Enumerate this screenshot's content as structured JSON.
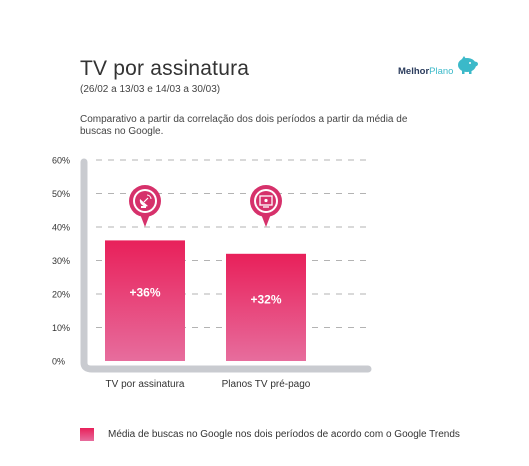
{
  "header": {
    "title": "TV por assinatura",
    "subtitle": "(26/02 a 13/03 e 14/03 a 30/03)",
    "description": "Comparativo a partir da correlação dos dois períodos a partir da média de buscas no Google."
  },
  "logo": {
    "part1": "Melhor",
    "part2": "Plano",
    "accent_color": "#3bb9c9"
  },
  "legend": {
    "label": "Média de buscas no Google nos dois períodos de acordo com o Google Trends"
  },
  "chart_data": {
    "type": "bar",
    "categories": [
      "TV por assinatura",
      "Planos TV pré-pago"
    ],
    "values": [
      36,
      32
    ],
    "data_labels": [
      "+36%",
      "+32%"
    ],
    "icons": [
      "satellite-dish-icon",
      "tv-icon"
    ],
    "y_ticks": [
      "0%",
      "10%",
      "20%",
      "30%",
      "40%",
      "50%",
      "60%"
    ],
    "ylim": [
      0,
      60
    ],
    "grid": true,
    "legend_position": "bottom-left",
    "bar_color_top": "#e8205a",
    "bar_color_bottom": "#e76d9d",
    "icon_color": "#d6316b",
    "axis_color": "#c9cbd0"
  }
}
